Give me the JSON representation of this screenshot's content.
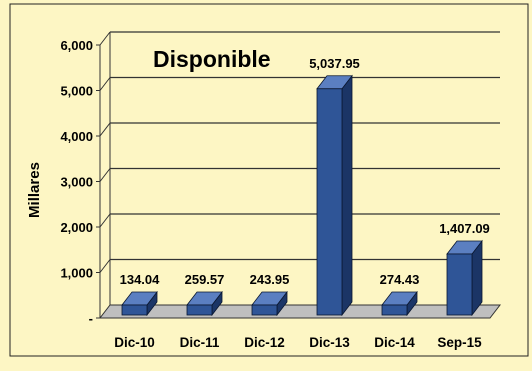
{
  "colors": {
    "background": "#fdf6c4",
    "border": "#222222",
    "bar_front": "#2f5597",
    "bar_side": "#1b3566",
    "bar_top": "#5b7fc1",
    "grid": "#333333",
    "floor": "#bfbfbf"
  },
  "chart_data": {
    "type": "bar",
    "title": "Disponible",
    "ylabel": "Millares",
    "xlabel": "",
    "ylim": [
      0,
      6000
    ],
    "grid": true,
    "categories": [
      "Dic-10",
      "Dic-11",
      "Dic-12",
      "Dic-13",
      "Dic-14",
      "Sep-15"
    ],
    "values": [
      134.04,
      259.57,
      243.95,
      5037.95,
      274.43,
      1407.09
    ],
    "value_labels": [
      "134.04",
      "259.57",
      "243.95",
      "5,037.95",
      "274.43",
      "1,407.09"
    ],
    "y_ticks": [
      0,
      1000,
      2000,
      3000,
      4000,
      5000,
      6000
    ],
    "y_tick_labels": [
      "-",
      "1,000",
      "2,000",
      "3,000",
      "4,000",
      "5,000",
      "6,000"
    ]
  }
}
